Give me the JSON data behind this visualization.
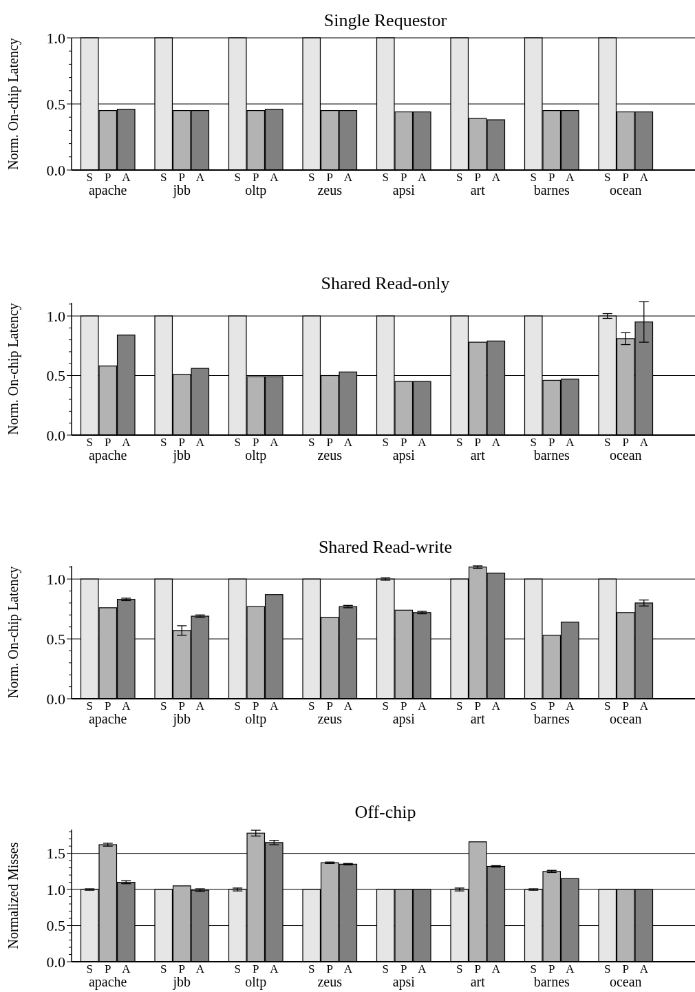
{
  "chart_data": [
    {
      "type": "bar",
      "title": "Single Requestor",
      "ylabel": "Norm. On-chip Latency",
      "categories": [
        "apache",
        "jbb",
        "oltp",
        "zeus",
        "apsi",
        "art",
        "barnes",
        "ocean"
      ],
      "ylim": [
        0,
        1
      ],
      "yticks": [
        {
          "value": 0,
          "label": "0.0"
        },
        {
          "value": 0.1,
          "label": null
        },
        {
          "value": 0.2,
          "label": null
        },
        {
          "value": 0.3,
          "label": null
        },
        {
          "value": 0.4,
          "label": null
        },
        {
          "value": 0.5,
          "label": "0.5"
        },
        {
          "value": 0.6,
          "label": null
        },
        {
          "value": 0.7,
          "label": null
        },
        {
          "value": 0.8,
          "label": null
        },
        {
          "value": 0.9,
          "label": null
        },
        {
          "value": 1,
          "label": "1.0"
        }
      ],
      "grid": "y",
      "series": [
        {
          "name": "S",
          "color": "#e6e6e6",
          "values": [
            1,
            1,
            1,
            1,
            1,
            1,
            1,
            1
          ]
        },
        {
          "name": "P",
          "color": "#b3b3b3",
          "values": [
            0.45,
            0.45,
            0.45,
            0.45,
            0.44,
            0.39,
            0.45,
            0.44
          ]
        },
        {
          "name": "A",
          "color": "#808080",
          "values": [
            0.46,
            0.45,
            0.46,
            0.45,
            0.44,
            0.38,
            0.45,
            0.44
          ]
        }
      ]
    },
    {
      "type": "bar",
      "title": "Shared Read-only",
      "ylabel": "Norm. On-chip Latency",
      "categories": [
        "apache",
        "jbb",
        "oltp",
        "zeus",
        "apsi",
        "art",
        "barnes",
        "ocean"
      ],
      "ylim": [
        0,
        1.11
      ],
      "yticks": [
        {
          "value": 0,
          "label": "0.0"
        },
        {
          "value": 0.1,
          "label": null
        },
        {
          "value": 0.2,
          "label": null
        },
        {
          "value": 0.3,
          "label": null
        },
        {
          "value": 0.4,
          "label": null
        },
        {
          "value": 0.5,
          "label": "0.5"
        },
        {
          "value": 0.6,
          "label": null
        },
        {
          "value": 0.7,
          "label": null
        },
        {
          "value": 0.8,
          "label": null
        },
        {
          "value": 0.9,
          "label": null
        },
        {
          "value": 1,
          "label": "1.0"
        },
        {
          "value": 1.1,
          "label": null
        }
      ],
      "grid": "y",
      "series": [
        {
          "name": "S",
          "color": "#e6e6e6",
          "values": [
            1,
            1,
            1,
            1,
            1,
            1,
            1,
            1
          ],
          "errors": [
            null,
            null,
            null,
            null,
            null,
            null,
            null,
            0.02
          ]
        },
        {
          "name": "P",
          "color": "#b3b3b3",
          "values": [
            0.58,
            0.51,
            0.49,
            0.5,
            0.45,
            0.78,
            0.46,
            0.81
          ],
          "errors": [
            null,
            null,
            null,
            null,
            null,
            null,
            null,
            0.05
          ]
        },
        {
          "name": "A",
          "color": "#808080",
          "values": [
            0.84,
            0.56,
            0.49,
            0.53,
            0.45,
            0.79,
            0.47,
            0.95
          ],
          "errors": [
            null,
            null,
            null,
            null,
            null,
            null,
            null,
            0.17
          ]
        }
      ]
    },
    {
      "type": "bar",
      "title": "Shared Read-write",
      "ylabel": "Norm. On-chip Latency",
      "categories": [
        "apache",
        "jbb",
        "oltp",
        "zeus",
        "apsi",
        "art",
        "barnes",
        "ocean"
      ],
      "ylim": [
        0,
        1.11
      ],
      "yticks": [
        {
          "value": 0,
          "label": "0.0"
        },
        {
          "value": 0.1,
          "label": null
        },
        {
          "value": 0.2,
          "label": null
        },
        {
          "value": 0.3,
          "label": null
        },
        {
          "value": 0.4,
          "label": null
        },
        {
          "value": 0.5,
          "label": "0.5"
        },
        {
          "value": 0.6,
          "label": null
        },
        {
          "value": 0.7,
          "label": null
        },
        {
          "value": 0.8,
          "label": null
        },
        {
          "value": 0.9,
          "label": null
        },
        {
          "value": 1,
          "label": "1.0"
        },
        {
          "value": 1.1,
          "label": null
        }
      ],
      "grid": "y",
      "series": [
        {
          "name": "S",
          "color": "#e6e6e6",
          "values": [
            1,
            1,
            1,
            1,
            1,
            1,
            1,
            1
          ],
          "errors": [
            null,
            null,
            null,
            null,
            0.01,
            null,
            null,
            null
          ]
        },
        {
          "name": "P",
          "color": "#b3b3b3",
          "values": [
            0.76,
            0.57,
            0.77,
            0.68,
            0.74,
            1.1,
            0.53,
            0.72
          ],
          "errors": [
            null,
            0.04,
            null,
            null,
            null,
            0.01,
            null,
            null
          ]
        },
        {
          "name": "A",
          "color": "#808080",
          "values": [
            0.83,
            0.69,
            0.87,
            0.77,
            0.72,
            1.05,
            0.64,
            0.8
          ],
          "errors": [
            0.01,
            0.01,
            null,
            0.01,
            0.01,
            null,
            null,
            0.025
          ]
        }
      ]
    },
    {
      "type": "bar",
      "title": "Off-chip",
      "ylabel": "Normalized Misses",
      "categories": [
        "apache",
        "jbb",
        "oltp",
        "zeus",
        "apsi",
        "art",
        "barnes",
        "ocean"
      ],
      "ylim": [
        0,
        1.83
      ],
      "yticks": [
        {
          "value": 0,
          "label": "0.0"
        },
        {
          "value": 0.1,
          "label": null
        },
        {
          "value": 0.2,
          "label": null
        },
        {
          "value": 0.3,
          "label": null
        },
        {
          "value": 0.4,
          "label": null
        },
        {
          "value": 0.5,
          "label": "0.5"
        },
        {
          "value": 0.6,
          "label": null
        },
        {
          "value": 0.7,
          "label": null
        },
        {
          "value": 0.8,
          "label": null
        },
        {
          "value": 0.9,
          "label": null
        },
        {
          "value": 1,
          "label": "1.0"
        },
        {
          "value": 1.1,
          "label": null
        },
        {
          "value": 1.2,
          "label": null
        },
        {
          "value": 1.3,
          "label": null
        },
        {
          "value": 1.4,
          "label": null
        },
        {
          "value": 1.5,
          "label": "1.5"
        },
        {
          "value": 1.6,
          "label": null
        },
        {
          "value": 1.7,
          "label": null
        },
        {
          "value": 1.8,
          "label": null
        }
      ],
      "grid": "y",
      "series": [
        {
          "name": "S",
          "color": "#e6e6e6",
          "values": [
            1,
            1,
            1,
            1,
            1,
            1,
            1,
            1
          ],
          "errors": [
            0.01,
            null,
            0.02,
            null,
            null,
            0.02,
            0.01,
            null
          ]
        },
        {
          "name": "P",
          "color": "#b3b3b3",
          "values": [
            1.62,
            1.05,
            1.78,
            1.37,
            1,
            1.66,
            1.25,
            1
          ],
          "errors": [
            0.02,
            null,
            0.04,
            0.01,
            null,
            null,
            0.015,
            null
          ]
        },
        {
          "name": "A",
          "color": "#808080",
          "values": [
            1.1,
            0.99,
            1.65,
            1.35,
            1,
            1.32,
            1.15,
            1
          ],
          "errors": [
            0.02,
            0.02,
            0.03,
            0.01,
            null,
            0.01,
            null,
            null
          ]
        }
      ]
    }
  ]
}
